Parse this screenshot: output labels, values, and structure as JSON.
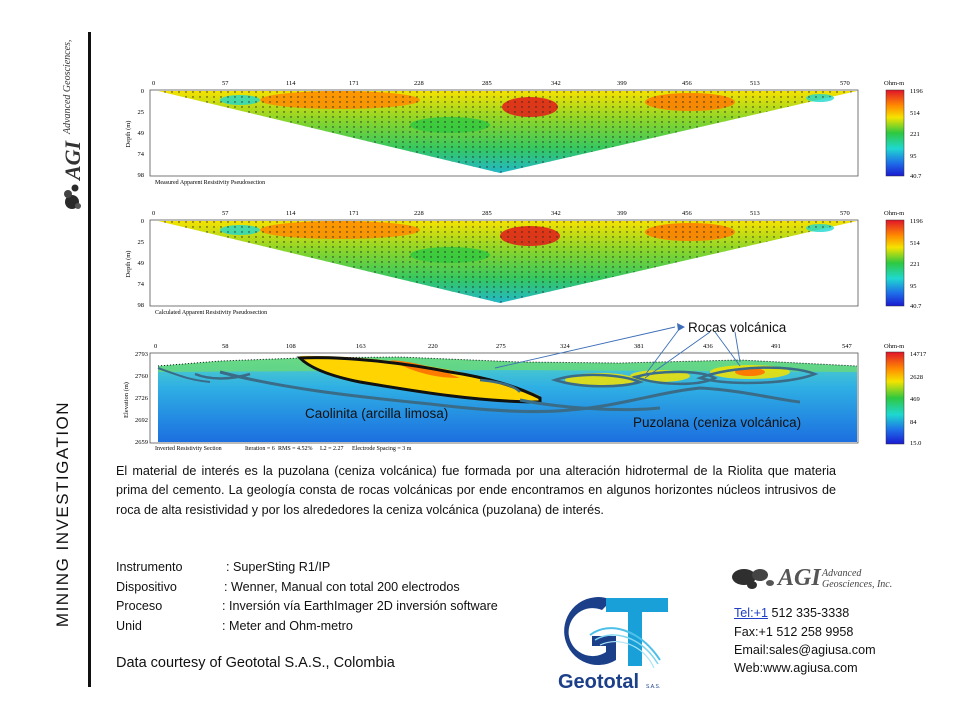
{
  "sidebar": {
    "title": "MINING INVESTIGATION",
    "logo_text": "AGI",
    "logo_company": "Advanced Geosciences, Inc."
  },
  "figure": {
    "pseudo1": {
      "caption": "Measured Apparent Resistivity Pseudosection",
      "x_ticks": [
        "0",
        "57",
        "114",
        "171",
        "228",
        "285",
        "342",
        "399",
        "456",
        "513",
        "570"
      ],
      "y_ticks": [
        "0",
        "25",
        "49",
        "74",
        "98"
      ],
      "y_label": "Depth (m)",
      "legend_unit": "Ohm-m",
      "legend_ticks": [
        "1196",
        "514",
        "221",
        "95",
        "40.7"
      ]
    },
    "pseudo2": {
      "caption": "Calculated Apparent Resistivity Pseudosection",
      "x_ticks": [
        "0",
        "57",
        "114",
        "171",
        "228",
        "285",
        "342",
        "399",
        "456",
        "513",
        "570"
      ],
      "y_ticks": [
        "0",
        "25",
        "49",
        "74",
        "98"
      ],
      "y_label": "Depth (m)",
      "legend_unit": "Ohm-m",
      "legend_ticks": [
        "1196",
        "514",
        "221",
        "95",
        "40.7"
      ]
    },
    "section": {
      "caption": "Inverted Resistivity Section",
      "iteration": "Iteration = 6",
      "rms": "RMS = 4.52%",
      "l2": "L2 = 2.27",
      "spacing": "Electrode Spacing = 3 m",
      "x_ticks": [
        "0",
        "58",
        "108",
        "163",
        "220",
        "275",
        "324",
        "381",
        "436",
        "491",
        "547"
      ],
      "y_ticks": [
        "2793",
        "2760",
        "2726",
        "2692",
        "2659"
      ],
      "y_label": "Elevation (m)",
      "legend_unit": "Ohm-m",
      "legend_ticks": [
        "14717",
        "2628",
        "469",
        "84",
        "15.0"
      ]
    },
    "annotations": {
      "rocas": "Rocas volcánica",
      "caolinita": "Caolinita (arcilla limosa)",
      "puzolana": "Puzolana (ceniza volcánica)"
    }
  },
  "description": "El material de interés es la puzolana (ceniza volcánica) fue formada por una alteración hidrotermal de la Riolita que materia prima del cemento. La geología consta de rocas volcánicas por ende encontramos en algunos horizontes núcleos intrusivos de roca de alta resistividad y por los alrededores la ceniza volcánica (puzolana) de interés.",
  "specs": [
    {
      "label": "Instrumento",
      "value": ": SuperSting R1/IP"
    },
    {
      "label": "Dispositivo",
      "value": ": Wenner, Manual con total 200 electrodos"
    },
    {
      "label": "Proceso",
      "value": ": Inversión vía EarthImager 2D inversión software"
    },
    {
      "label": "Unid",
      "value": ": Meter and Ohm-metro"
    }
  ],
  "courtesy": "Data courtesy of Geototal S.A.S., Colombia",
  "geototal": {
    "name": "Geototal",
    "suffix": "S.A.S."
  },
  "agi": {
    "text": "AGI",
    "company_line1": "Advanced",
    "company_line2": "Geosciences, Inc."
  },
  "contact": {
    "tel_label": "Tel:+1",
    "tel_number": " 512 335-3338",
    "fax": "Fax:+1 512 258 9958",
    "email": "Email:sales@agiusa.com",
    "web": "Web:www.agiusa.com"
  }
}
